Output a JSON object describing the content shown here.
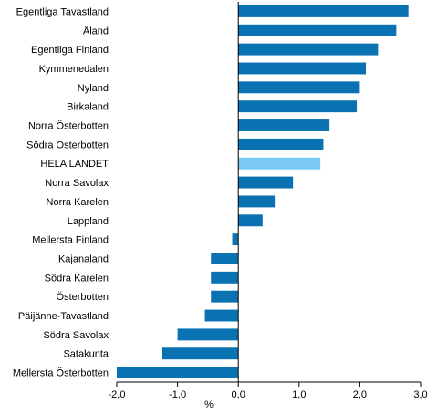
{
  "chart_data": {
    "type": "bar",
    "orientation": "horizontal",
    "categories": [
      "Egentliga Tavastland",
      "Åland",
      "Egentliga Finland",
      "Kymmenedalen",
      "Nyland",
      "Birkaland",
      "Norra Österbotten",
      "Södra Österbotten",
      "HELA LANDET",
      "Norra Savolax",
      "Norra Karelen",
      "Lappland",
      "Mellersta Finland",
      "Kajanaland",
      "Södra Karelen",
      "Österbotten",
      "Päijänne-Tavastland",
      "Södra Savolax",
      "Satakunta",
      "Mellersta Österbotten"
    ],
    "values": [
      2.8,
      2.6,
      2.3,
      2.1,
      2.0,
      1.95,
      1.5,
      1.4,
      1.35,
      0.9,
      0.6,
      0.4,
      -0.1,
      -0.45,
      -0.45,
      -0.45,
      -0.55,
      -1.0,
      -1.25,
      -2.0
    ],
    "highlight_category": "HELA LANDET",
    "xlabel": "%",
    "xlim": [
      -2.0,
      3.0
    ],
    "xticks": [
      "-2,0",
      "-1,0",
      "0,0",
      "1,0",
      "2,0",
      "3,0"
    ],
    "grid": false,
    "colors": {
      "bar": "#0a72b2",
      "highlight": "#7ac8f4",
      "axis": "#000000"
    }
  }
}
